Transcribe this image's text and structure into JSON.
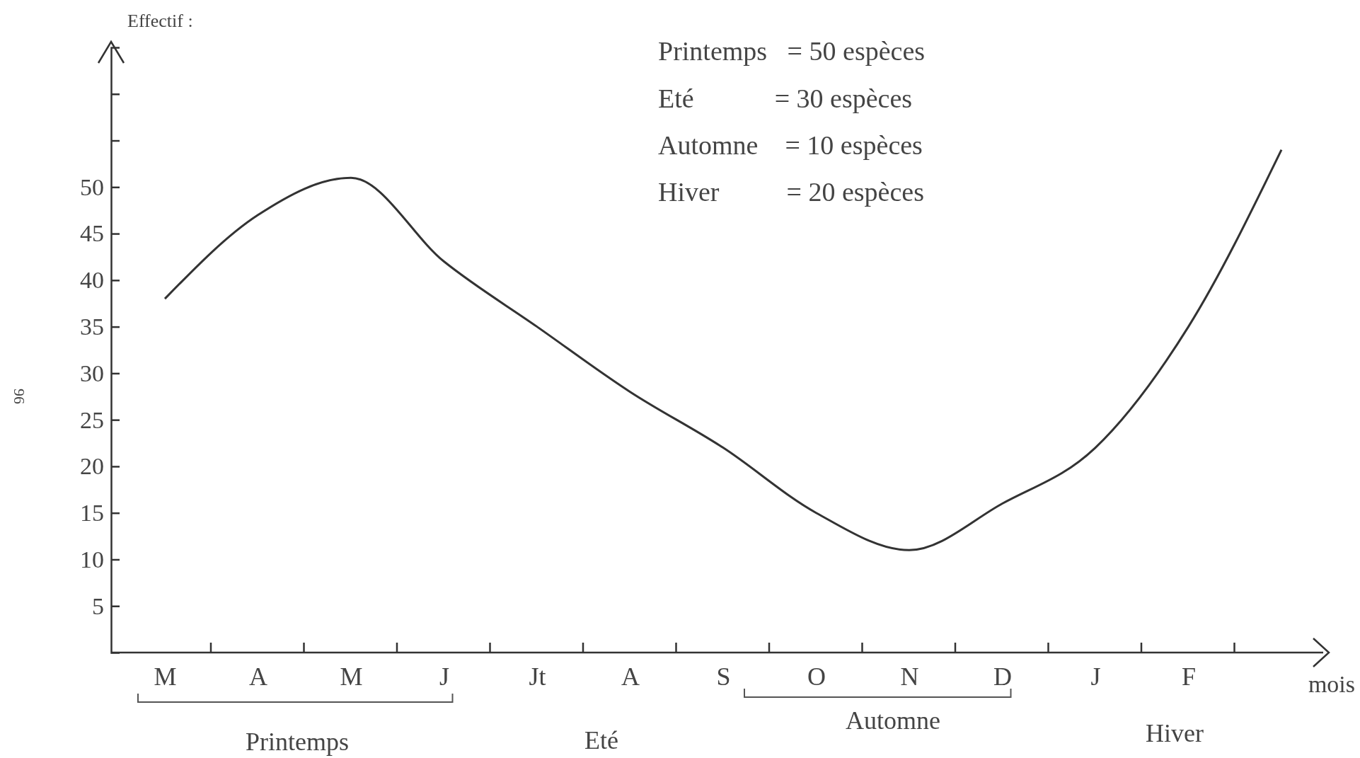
{
  "chart_data": {
    "type": "line",
    "ylabel": "Effectif :",
    "xlabel": "mois",
    "categories": [
      "M",
      "A",
      "M",
      "J",
      "Jt",
      "A",
      "S",
      "O",
      "N",
      "D",
      "J",
      "F",
      null
    ],
    "series": [
      {
        "color": "#333333",
        "values": [
          38,
          47,
          51,
          42,
          35,
          28,
          22,
          15,
          11,
          16,
          22,
          35,
          54
        ]
      }
    ],
    "ylim": [
      0,
      65
    ],
    "yticks": [
      5,
      10,
      15,
      20,
      25,
      30,
      35,
      40,
      45,
      50,
      {
        "value": 55,
        "label": null
      },
      {
        "value": 60,
        "label": null
      }
    ],
    "grid": false,
    "marker": "none",
    "line_style": "solid",
    "annotations": [
      "Printemps   = 50 espèces",
      "Eté            = 30 espèces",
      "Automne    = 10 espèces",
      "Hiver          = 20 espèces",
      "Printemps",
      "Eté",
      "Automne",
      "Hiver",
      "96"
    ]
  }
}
